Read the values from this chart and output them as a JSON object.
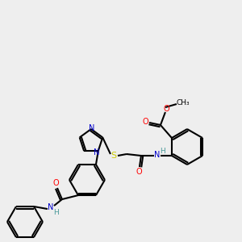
{
  "bg_color": "#eeeeee",
  "bond_color": "#000000",
  "atom_colors": {
    "N": "#0000cc",
    "O": "#ff0000",
    "S": "#cccc00",
    "H": "#4a9a9a",
    "C": "#000000"
  },
  "figsize": [
    3.0,
    3.0
  ],
  "dpi": 100
}
